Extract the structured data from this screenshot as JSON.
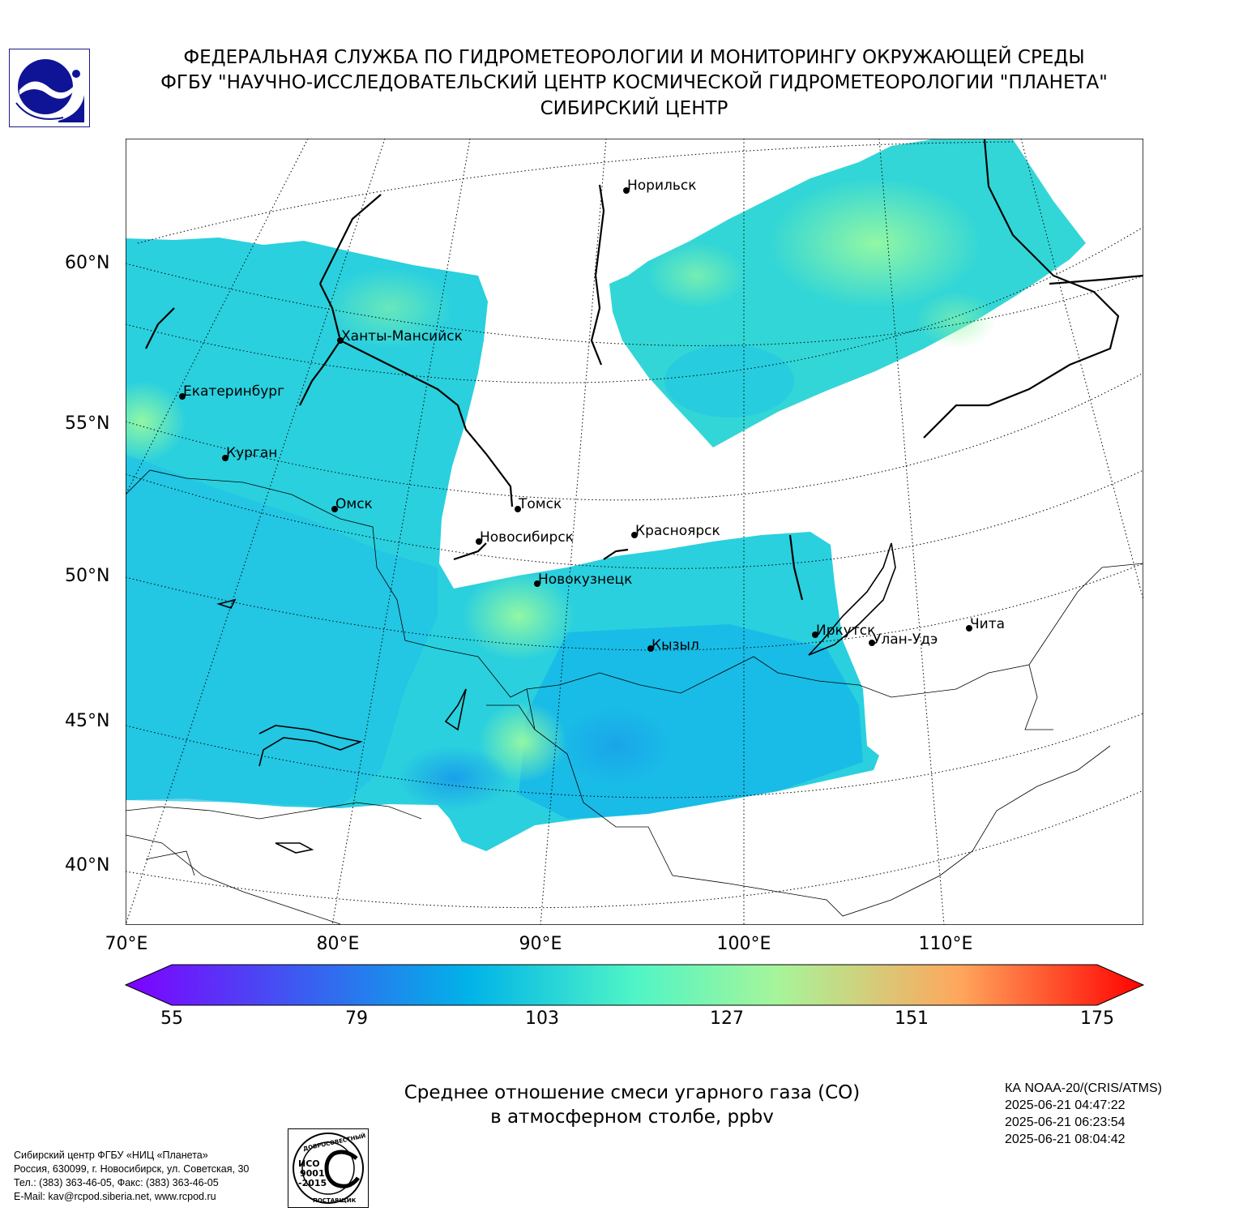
{
  "header": {
    "line1": "ФЕДЕРАЛЬНАЯ СЛУЖБА ПО ГИДРОМЕТЕОРОЛОГИИ И МОНИТОРИНГУ ОКРУЖАЮЩЕЙ СРЕДЫ",
    "line2": "ФГБУ \"НАУЧНО-ИССЛЕДОВАТЕЛЬСКИЙ ЦЕНТР КОСМИЧЕСКОЙ ГИДРОМЕТЕОРОЛОГИИ \"ПЛАНЕТА\"",
    "line3": "СИБИРСКИЙ ЦЕНТР"
  },
  "logo": {
    "icon": "planeta-logo-icon",
    "color": "#1a1a8c"
  },
  "map": {
    "lat_labels": [
      "60°N",
      "55°N",
      "50°N",
      "45°N",
      "40°N"
    ],
    "lon_labels": [
      "70°E",
      "80°E",
      "90°E",
      "100°E",
      "110°E"
    ],
    "cities": [
      {
        "name": "Норильск"
      },
      {
        "name": "Ханты-Мансийск"
      },
      {
        "name": "Екатеринбург"
      },
      {
        "name": "Курган"
      },
      {
        "name": "Омск"
      },
      {
        "name": "Томск"
      },
      {
        "name": "Новосибирск"
      },
      {
        "name": "Красноярск"
      },
      {
        "name": "Новокузнецк"
      },
      {
        "name": "Иркутск"
      },
      {
        "name": "Улан-Удэ"
      },
      {
        "name": "Чита"
      },
      {
        "name": "Кызыл"
      }
    ]
  },
  "colorbar": {
    "ticks": [
      "55",
      "79",
      "103",
      "127",
      "151",
      "175"
    ],
    "min": 55,
    "max": 175,
    "colors": [
      "#7f00ff",
      "#3d5af1",
      "#00b4e8",
      "#4ff5c6",
      "#a6f59a",
      "#ffa65c",
      "#ff0000"
    ]
  },
  "caption": {
    "line1": "Среднее отношение смеси угарного газа (CO)",
    "line2": "в атмосферном столбе, ppbv"
  },
  "satellite": {
    "name": "КА NOAA-20/(CRIS/ATMS)",
    "times": [
      "2025-06-21 04:47:22",
      "2025-06-21 06:23:54",
      "2025-06-21 08:04:42"
    ]
  },
  "contacts": [
    "Сибирский центр ФГБУ «НИЦ «Планета»",
    "Россия, 630099, г. Новосибирск, ул. Советская, 30",
    "Тел.: (383) 363-46-05, Факс: (383) 363-46-05",
    "E-Mail: kav@rcpod.siberia.net, www.rcpod.ru"
  ],
  "iso_badge": {
    "icon": "iso-certificate-icon",
    "top_text": "ДОБРОСОВЕСТНЫЙ",
    "line1": "ИСО",
    "line2": "9001",
    "line3": "-2015",
    "bottom_text": "ПОСТАВЩИК"
  }
}
